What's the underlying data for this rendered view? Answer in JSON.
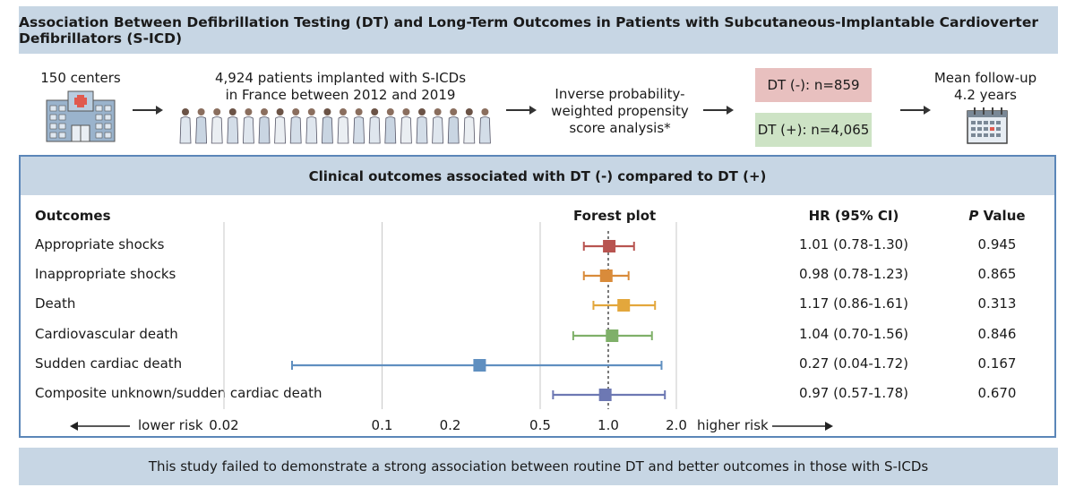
{
  "title": "Association Between Defibrillation Testing (DT) and Long-Term Outcomes in Patients with Subcutaneous-Implantable Cardioverter Defibrillators (S-ICD)",
  "flow": {
    "centers": "150 centers",
    "patients_line1": "4,924 patients implanted with S-ICDs",
    "patients_line2": "in France between 2012 and 2019",
    "analysis_line1": "Inverse probability-",
    "analysis_line2": "weighted propensity",
    "analysis_line3": "score analysis*",
    "dt_neg": "DT (-):  n=859",
    "dt_pos": "DT (+):  n=4,065",
    "followup_line1": "Mean follow-up",
    "followup_line2": "4.2 years"
  },
  "colors": {
    "title_bg": "#c7d6e4",
    "dt_neg_bg": "#e8c0bf",
    "dt_pos_bg": "#cde3c5",
    "frame": "#5b86b8"
  },
  "outcomes_section": {
    "header": "Clinical outcomes associated with DT (-) compared to DT (+)",
    "col_outcomes": "Outcomes",
    "col_forest": "Forest plot",
    "col_hr": "HR (95% CI)",
    "col_p_italic": "P",
    "col_p_rest": " Value"
  },
  "axis": {
    "lower_risk": "lower risk",
    "higher_risk": "higher risk"
  },
  "chart_data": {
    "type": "forest",
    "title": "Forest plot",
    "xscale": "log",
    "xlim": [
      0.0158,
      2.5
    ],
    "ticks": [
      {
        "value": 0.02,
        "label": "0.02"
      },
      {
        "value": 0.1,
        "label": "0.1"
      },
      {
        "value": 0.2,
        "label": "0.2"
      },
      {
        "value": 0.5,
        "label": "0.5"
      },
      {
        "value": 1.0,
        "label": "1.0"
      },
      {
        "value": 2.0,
        "label": "2.0"
      }
    ],
    "gridlines": [
      0.02,
      0.1,
      0.5,
      2.0
    ],
    "reference_line": 1.0,
    "rows": [
      {
        "outcome": "Appropriate shocks",
        "hr": 1.01,
        "lo": 0.78,
        "hi": 1.3,
        "hr_text": "1.01 (0.78-1.30)",
        "p": "0.945",
        "color": "#b85450"
      },
      {
        "outcome": "Inappropriate shocks",
        "hr": 0.98,
        "lo": 0.78,
        "hi": 1.23,
        "hr_text": "0.98 (0.78-1.23)",
        "p": "0.865",
        "color": "#d98b3a"
      },
      {
        "outcome": "Death",
        "hr": 1.17,
        "lo": 0.86,
        "hi": 1.61,
        "hr_text": "1.17 (0.86-1.61)",
        "p": "0.313",
        "color": "#e3a73c"
      },
      {
        "outcome": "Cardiovascular death",
        "hr": 1.04,
        "lo": 0.7,
        "hi": 1.56,
        "hr_text": "1.04 (0.70-1.56)",
        "p": "0.846",
        "color": "#7fb069"
      },
      {
        "outcome": "Sudden cardiac death",
        "hr": 0.27,
        "lo": 0.04,
        "hi": 1.72,
        "hr_text": "0.27 (0.04-1.72)",
        "p": "0.167",
        "color": "#5f8fc0"
      },
      {
        "outcome": "Composite unknown/sudden cardiac death",
        "hr": 0.97,
        "lo": 0.57,
        "hi": 1.78,
        "hr_text": "0.97 (0.57-1.78)",
        "p": "0.670",
        "color": "#6d78b3"
      }
    ]
  },
  "footer": "This study failed to demonstrate a strong association between routine DT and better outcomes in those with S-ICDs",
  "icons": [
    "hospital-icon",
    "patients-icon",
    "calendar-icon"
  ]
}
